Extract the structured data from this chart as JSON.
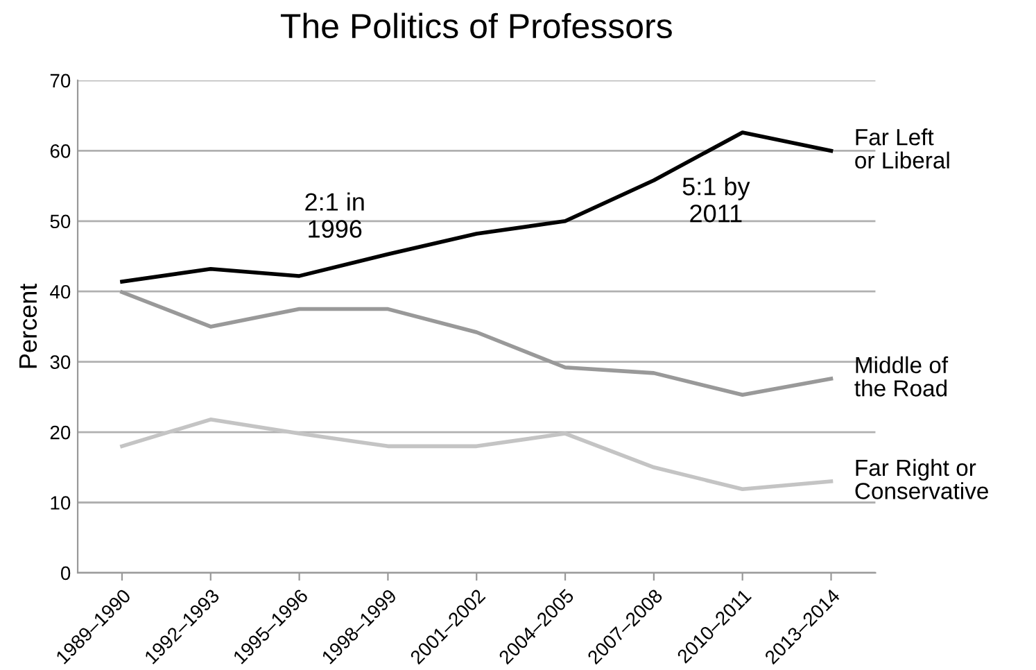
{
  "chart_data": {
    "type": "line",
    "title": "The Politics of Professors",
    "ylabel": "Percent",
    "categories": [
      "1989–1990",
      "1992–1993",
      "1995–1996",
      "1998–1999",
      "2001–2002",
      "2004–2005",
      "2007–2008",
      "2010–2011",
      "2013–2014"
    ],
    "series": [
      {
        "name": "Far Left\nor Liberal",
        "color": "#000000",
        "values": [
          41.4,
          43.2,
          42.2,
          45.3,
          48.2,
          50.0,
          55.8,
          62.6,
          60.0
        ]
      },
      {
        "name": "Middle of\nthe Road",
        "color": "#999999",
        "values": [
          39.9,
          35.0,
          37.5,
          37.5,
          34.2,
          29.2,
          28.4,
          25.3,
          27.6
        ]
      },
      {
        "name": "Far Right or\nConservative",
        "color": "#c4c4c4",
        "values": [
          18.0,
          21.8,
          19.8,
          18.0,
          18.0,
          19.8,
          15.0,
          11.9,
          13.0
        ]
      }
    ],
    "annotations": [
      "2:1 in\n1996",
      "5:1 by\n2011"
    ],
    "ylim": [
      0,
      70
    ],
    "yticks": [
      0,
      10,
      20,
      30,
      40,
      50,
      60,
      70
    ],
    "grid": "y",
    "legend": false,
    "marker": "none",
    "line_style": "solid"
  }
}
